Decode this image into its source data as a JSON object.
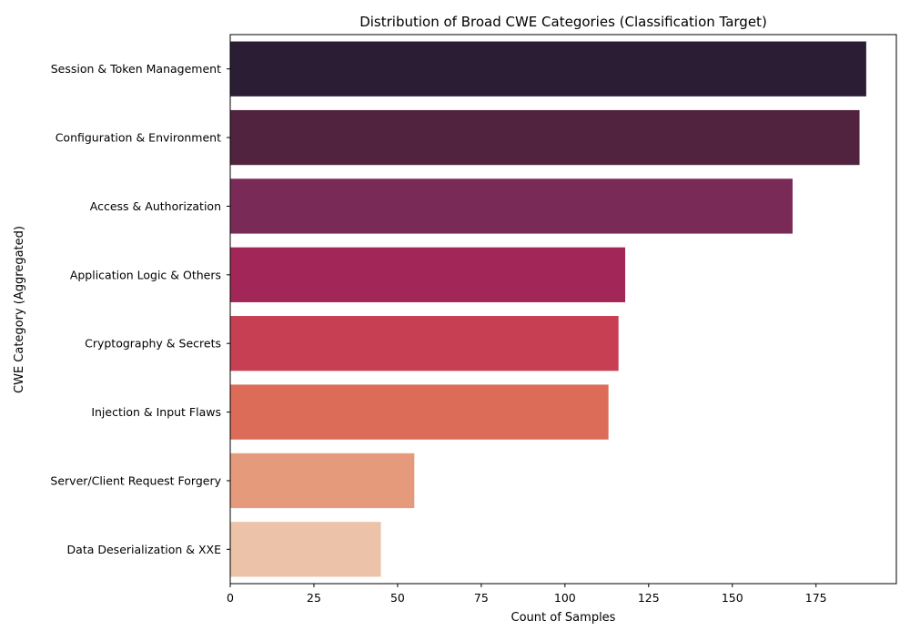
{
  "chart_data": {
    "type": "bar",
    "orientation": "horizontal",
    "title": "Distribution of Broad CWE Categories (Classification Target)",
    "xlabel": "Count of Samples",
    "ylabel": "CWE Category (Aggregated)",
    "xlim": [
      0,
      199
    ],
    "xticks": [
      0,
      25,
      50,
      75,
      100,
      125,
      150,
      175
    ],
    "grid": false,
    "categories": [
      "Session & Token Management",
      "Configuration & Environment",
      "Access & Authorization",
      "Application Logic & Others",
      "Cryptography & Secrets",
      "Injection & Input Flaws",
      "Server/Client Request Forgery",
      "Data Deserialization & XXE"
    ],
    "values": [
      190,
      188,
      168,
      118,
      116,
      113,
      55,
      45
    ],
    "colors": [
      "#2b1d33",
      "#51233f",
      "#7a2a57",
      "#a22758",
      "#c63f53",
      "#dc6b58",
      "#e59b7b",
      "#ecc2a9"
    ]
  }
}
